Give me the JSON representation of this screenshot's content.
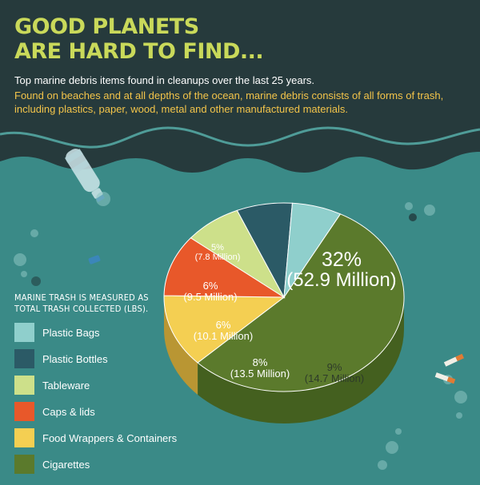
{
  "header": {
    "title_line1": "Good Planets",
    "title_line2": "Are Hard to Find...",
    "subtitle": "Top marine debris items found in cleanups over the last 25 years.",
    "description": "Found on beaches and at all depths of the ocean, marine debris consists of all forms of trash, including plastics, paper, wood, metal and other manufactured materials."
  },
  "legend": {
    "title_line1": "Marine trash is measured as",
    "title_line2": "total trash collected (lbs)."
  },
  "colors": {
    "background_sea": "#3a8a87",
    "background_dark": "#263a3c",
    "title": "#c9d95a",
    "description": "#f3c44a"
  },
  "chart_data": {
    "type": "pie",
    "units": "lbs",
    "slices": [
      {
        "label": "Cigarettes",
        "percent": 32,
        "percent_label": "32%",
        "value_label": "(52.9 Million)",
        "value_millions": 52.9,
        "color": "#5b7a2c",
        "side_color": "#44601f"
      },
      {
        "label": "Food Wrappers & Containers",
        "percent": 9,
        "percent_label": "9%",
        "value_label": "(14.7 Million)",
        "value_millions": 14.7,
        "color": "#f4cf52",
        "side_color": "#b99633"
      },
      {
        "label": "Caps & lids",
        "percent": 8,
        "percent_label": "8%",
        "value_label": "(13.5 Million)",
        "value_millions": 13.5,
        "color": "#e8582a",
        "side_color": "#9e3a1c"
      },
      {
        "label": "Tableware",
        "percent": 6,
        "percent_label": "6%",
        "value_label": "(10.1 Million)",
        "value_millions": 10.1,
        "color": "#cde08a",
        "side_color": "#8e9c5a"
      },
      {
        "label": "Plastic Bottles",
        "percent": 6,
        "percent_label": "6%",
        "value_label": "(9.5 Million)",
        "value_millions": 9.5,
        "color": "#2b5a66",
        "side_color": "#1c3e46"
      },
      {
        "label": "Plastic Bags",
        "percent": 5,
        "percent_label": "5%",
        "value_label": "(7.8 Million)",
        "value_millions": 7.8,
        "color": "#8fcfcc",
        "side_color": "#5d9592"
      }
    ],
    "legend_order": [
      "Plastic Bags",
      "Plastic Bottles",
      "Tableware",
      "Caps & lids",
      "Food Wrappers & Containers",
      "Cigarettes"
    ]
  }
}
